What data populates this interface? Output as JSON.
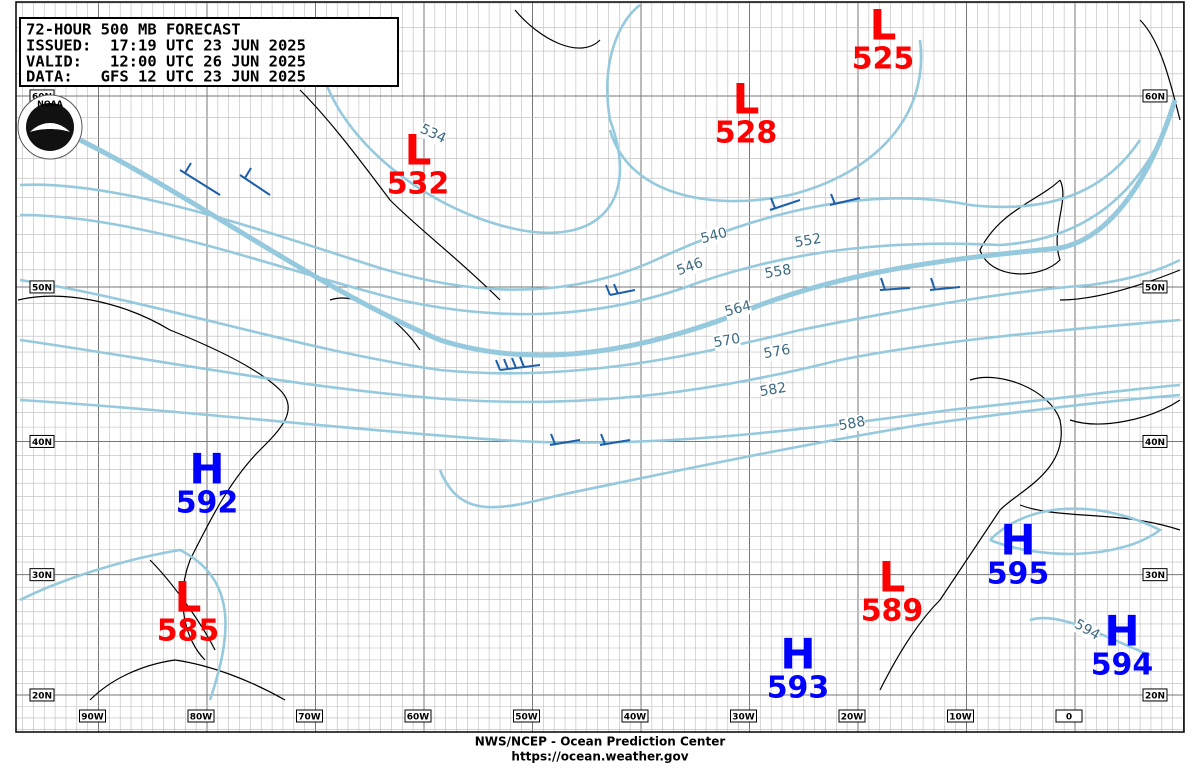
{
  "header": {
    "lines": [
      "72-HOUR 500 MB FORECAST",
      "ISSUED:  17:19 UTC 23 JUN 2025",
      "VALID:   12:00 UTC 26 JUN 2025",
      "DATA:   GFS 12 UTC 23 JUN 2025"
    ]
  },
  "logo": "NOAA",
  "centers": [
    {
      "type": "L",
      "value": 525
    },
    {
      "type": "L",
      "value": 528
    },
    {
      "type": "L",
      "value": 532
    },
    {
      "type": "H",
      "value": 592
    },
    {
      "type": "L",
      "value": 585
    },
    {
      "type": "H",
      "value": 595
    },
    {
      "type": "L",
      "value": 589
    },
    {
      "type": "H",
      "value": 593
    },
    {
      "type": "H",
      "value": 594
    }
  ],
  "contour_labels": [
    534,
    540,
    546,
    552,
    558,
    564,
    570,
    576,
    582,
    588,
    594
  ],
  "lat_labels": [
    "60N",
    "50N",
    "40N",
    "30N",
    "20N"
  ],
  "lon_labels": [
    "90W",
    "80W",
    "70W",
    "60W",
    "50W",
    "40W",
    "30W",
    "20W",
    "10W",
    "0"
  ],
  "footer": [
    "NWS/NCEP - Ocean Prediction Center",
    "https://ocean.weather.gov"
  ]
}
